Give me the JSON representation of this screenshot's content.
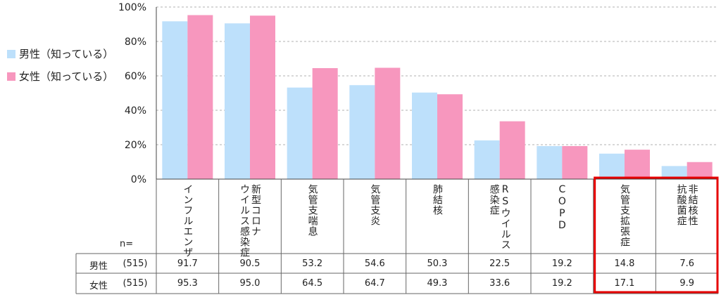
{
  "chart_data": {
    "type": "bar",
    "ylim": [
      0,
      100
    ],
    "yticks": [
      "0%",
      "20%",
      "40%",
      "60%",
      "80%",
      "100%"
    ],
    "categories": [
      [
        "インフルエンザ"
      ],
      [
        "新型コロナ",
        "ウイルス感染症"
      ],
      [
        "気管支喘息"
      ],
      [
        "気管支炎"
      ],
      [
        "肺結核"
      ],
      [
        "RSウイルス",
        "感染症"
      ],
      [
        "COPD"
      ],
      [
        "気管支拡張症"
      ],
      [
        "非結核性",
        "抗酸菌症"
      ]
    ],
    "series": [
      {
        "name": "男性（知っている）",
        "color": "#bde0fb",
        "values": [
          91.7,
          90.5,
          53.2,
          54.6,
          50.3,
          22.5,
          19.2,
          14.8,
          7.6
        ]
      },
      {
        "name": "女性（知っている）",
        "color": "#f797be",
        "values": [
          95.3,
          95.0,
          64.5,
          64.7,
          49.3,
          33.6,
          19.2,
          17.1,
          9.9
        ]
      }
    ],
    "grid": true,
    "legend": "left",
    "highlight_color": "#e60000"
  },
  "table": {
    "n_label": "n=",
    "rows": [
      {
        "label": "男性",
        "n": "(515)",
        "values": [
          "91.7",
          "90.5",
          "53.2",
          "54.6",
          "50.3",
          "22.5",
          "19.2",
          "14.8",
          "7.6"
        ]
      },
      {
        "label": "女性",
        "n": "(515)",
        "values": [
          "95.3",
          "95.0",
          "64.5",
          "64.7",
          "49.3",
          "33.6",
          "19.2",
          "17.1",
          "9.9"
        ]
      }
    ]
  }
}
